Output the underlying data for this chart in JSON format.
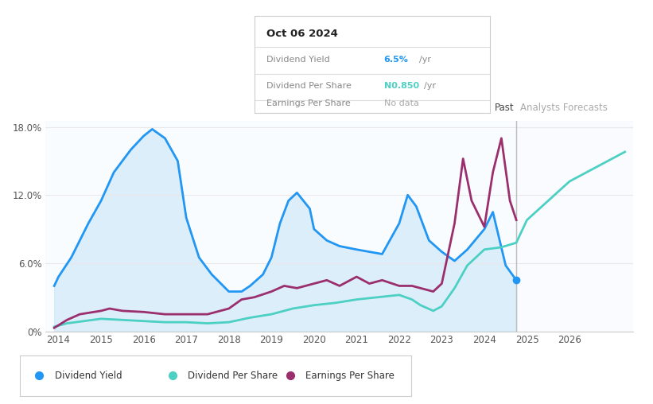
{
  "title_box": "Oct 06 2024",
  "bg_color": "#ffffff",
  "plot_bg_color": "#ffffff",
  "past_shading_color": "#ddeeff",
  "forecast_shading_color": "#e0eeff",
  "dividend_yield_color": "#2196F3",
  "dividend_yield_fill_color": "#c5e3f7",
  "dividend_per_share_color": "#4DD0C4",
  "earnings_per_share_color": "#9B2F6E",
  "grid_color": "#e8e8e8",
  "past_line_x": 2024.75,
  "forecast_start_x": 2024.75,
  "x_min": 2013.7,
  "x_max": 2027.5,
  "y_min": 0,
  "y_max": 18.5,
  "div_yield_x": [
    2013.9,
    2014.0,
    2014.3,
    2014.7,
    2015.0,
    2015.3,
    2015.7,
    2016.0,
    2016.2,
    2016.5,
    2016.8,
    2017.0,
    2017.3,
    2017.6,
    2018.0,
    2018.3,
    2018.5,
    2018.8,
    2019.0,
    2019.2,
    2019.4,
    2019.6,
    2019.9,
    2020.0,
    2020.3,
    2020.6,
    2021.0,
    2021.3,
    2021.6,
    2022.0,
    2022.2,
    2022.4,
    2022.7,
    2023.0,
    2023.3,
    2023.6,
    2024.0,
    2024.2,
    2024.5,
    2024.75
  ],
  "div_yield_y": [
    4.0,
    4.8,
    6.5,
    9.5,
    11.5,
    14.0,
    16.0,
    17.2,
    17.8,
    17.0,
    15.0,
    10.0,
    6.5,
    5.0,
    3.5,
    3.5,
    4.0,
    5.0,
    6.5,
    9.5,
    11.5,
    12.2,
    10.8,
    9.0,
    8.0,
    7.5,
    7.2,
    7.0,
    6.8,
    9.5,
    12.0,
    11.0,
    8.0,
    7.0,
    6.2,
    7.2,
    9.0,
    10.5,
    5.8,
    4.5
  ],
  "div_per_share_x": [
    2013.9,
    2014.2,
    2014.6,
    2015.0,
    2015.5,
    2016.0,
    2016.5,
    2017.0,
    2017.5,
    2018.0,
    2018.5,
    2019.0,
    2019.5,
    2020.0,
    2020.5,
    2021.0,
    2021.5,
    2022.0,
    2022.3,
    2022.5,
    2022.8,
    2023.0,
    2023.3,
    2023.6,
    2024.0,
    2024.4,
    2024.75,
    2025.0,
    2025.5,
    2026.0,
    2026.5,
    2027.0,
    2027.3
  ],
  "div_per_share_y": [
    0.4,
    0.7,
    0.9,
    1.1,
    1.0,
    0.9,
    0.8,
    0.8,
    0.7,
    0.8,
    1.2,
    1.5,
    2.0,
    2.3,
    2.5,
    2.8,
    3.0,
    3.2,
    2.8,
    2.3,
    1.8,
    2.2,
    3.8,
    5.8,
    7.2,
    7.4,
    7.8,
    9.8,
    11.5,
    13.2,
    14.2,
    15.2,
    15.8
  ],
  "eps_x": [
    2013.9,
    2014.2,
    2014.5,
    2015.0,
    2015.2,
    2015.5,
    2016.0,
    2016.5,
    2017.0,
    2017.5,
    2018.0,
    2018.3,
    2018.6,
    2019.0,
    2019.3,
    2019.6,
    2020.0,
    2020.3,
    2020.6,
    2021.0,
    2021.3,
    2021.6,
    2022.0,
    2022.3,
    2022.5,
    2022.8,
    2023.0,
    2023.3,
    2023.5,
    2023.7,
    2024.0,
    2024.2,
    2024.4,
    2024.6,
    2024.75
  ],
  "eps_y": [
    0.3,
    1.0,
    1.5,
    1.8,
    2.0,
    1.8,
    1.7,
    1.5,
    1.5,
    1.5,
    2.0,
    2.8,
    3.0,
    3.5,
    4.0,
    3.8,
    4.2,
    4.5,
    4.0,
    4.8,
    4.2,
    4.5,
    4.0,
    4.0,
    3.8,
    3.5,
    4.2,
    9.5,
    15.2,
    11.5,
    9.2,
    14.0,
    17.0,
    11.5,
    9.8
  ],
  "tooltip_dy_value": "6.5%",
  "tooltip_dy_suffix": " /yr",
  "tooltip_dps_value": "N0.850",
  "tooltip_dps_suffix": " /yr",
  "tooltip_eps_value": "No data",
  "legend_labels": [
    "Dividend Yield",
    "Dividend Per Share",
    "Earnings Per Share"
  ],
  "legend_colors": [
    "#2196F3",
    "#4DD0C4",
    "#9B2F6E"
  ]
}
